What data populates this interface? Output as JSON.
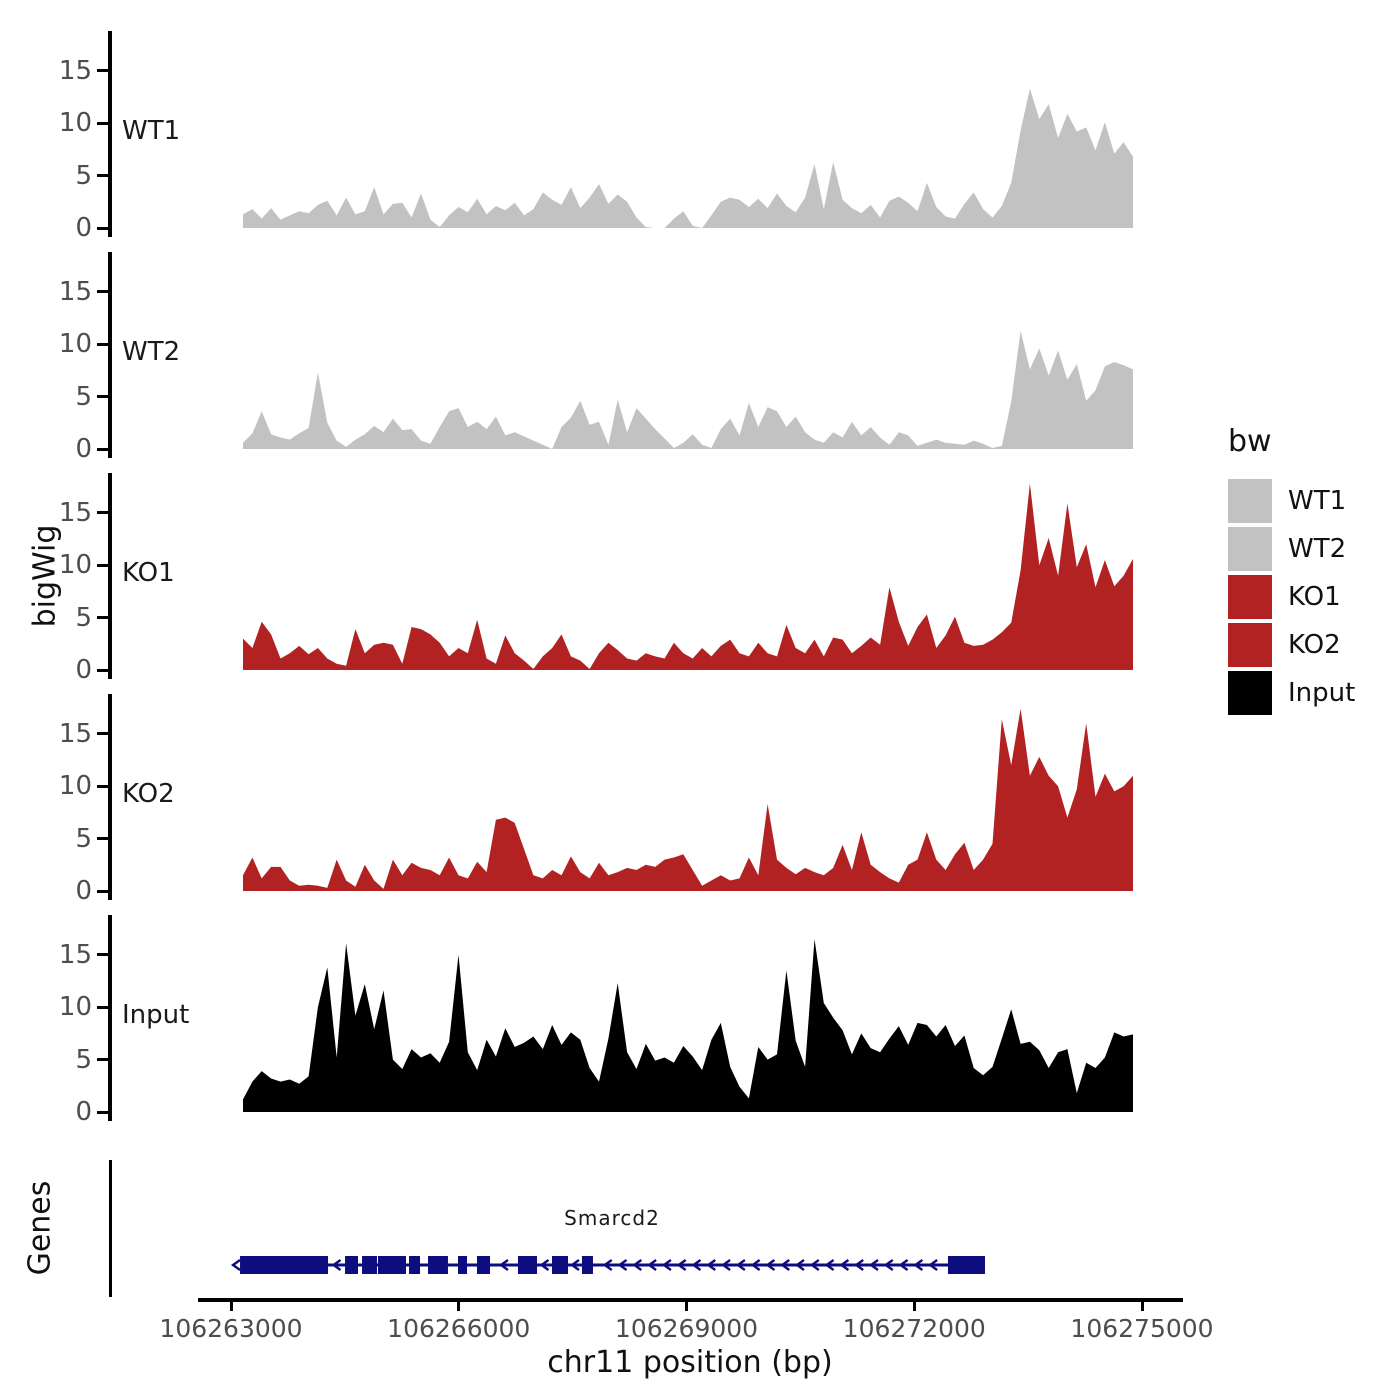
{
  "titles": {
    "y_axis": "bigWig",
    "genes_axis": "Genes"
  },
  "x_axis": {
    "title": "chr11 position (bp)",
    "ticks": [
      {
        "label": "106263000",
        "bp": 106263000
      },
      {
        "label": "106266000",
        "bp": 106266000
      },
      {
        "label": "106269000",
        "bp": 106269000
      },
      {
        "label": "106272000",
        "bp": 106272000
      },
      {
        "label": "106275000",
        "bp": 106275000
      }
    ]
  },
  "legend": {
    "title": "bw",
    "entries": [
      {
        "label": "WT1",
        "color": "#c2c2c2"
      },
      {
        "label": "WT2",
        "color": "#c2c2c2"
      },
      {
        "label": "KO1",
        "color": "#b22222"
      },
      {
        "label": "KO2",
        "color": "#b22222"
      },
      {
        "label": "Input",
        "color": "#000000"
      }
    ]
  },
  "tracks": [
    {
      "label": "WT1",
      "yticks": [
        0,
        5,
        10,
        15
      ]
    },
    {
      "label": "WT2",
      "yticks": [
        0,
        5,
        10,
        15
      ]
    },
    {
      "label": "KO1",
      "yticks": [
        0,
        5,
        10,
        15
      ]
    },
    {
      "label": "KO2",
      "yticks": [
        0,
        5,
        10,
        15
      ]
    },
    {
      "label": "Input",
      "yticks": [
        0,
        5,
        10,
        15
      ]
    }
  ],
  "chart_data": {
    "type": "area",
    "xlabel": "chr11 position (bp)",
    "ylabel": "bigWig",
    "x_axis_range_bp": [
      106262560,
      106275540
    ],
    "x_ticks_bp": [
      106263000,
      106266000,
      106269000,
      106272000,
      106275000
    ],
    "track_ylim": [
      0,
      18.8
    ],
    "track_yticks": [
      0,
      5,
      10,
      15
    ],
    "data_x_start_bp": 106263160,
    "data_x_end_bp": 106274880,
    "series": [
      {
        "name": "WT1",
        "color": "#c2c2c2",
        "values": [
          1.3,
          1.8,
          0.9,
          1.9,
          0.8,
          1.2,
          1.6,
          1.4,
          2.2,
          2.6,
          1.2,
          2.9,
          1.3,
          1.6,
          3.9,
          1.3,
          2.3,
          2.4,
          1.0,
          3.3,
          0.8,
          0.1,
          1.2,
          2.0,
          1.5,
          2.8,
          1.3,
          2.1,
          1.7,
          2.4,
          1.2,
          1.8,
          3.4,
          2.7,
          2.2,
          3.9,
          1.9,
          2.9,
          4.2,
          2.3,
          3.2,
          2.5,
          1.0,
          0.1,
          0.0,
          0.0,
          0.9,
          1.6,
          0.2,
          0.0,
          1.2,
          2.5,
          2.9,
          2.7,
          2.0,
          2.8,
          1.9,
          3.3,
          2.1,
          1.5,
          2.9,
          6.1,
          1.8,
          6.3,
          2.7,
          1.9,
          1.4,
          2.2,
          1.0,
          2.6,
          3.0,
          2.4,
          1.6,
          4.3,
          2.0,
          1.1,
          0.9,
          2.3,
          3.4,
          1.8,
          1.0,
          2.1,
          4.3,
          9.3,
          13.3,
          10.4,
          11.8,
          8.6,
          10.9,
          9.2,
          9.6,
          7.4,
          10.1,
          7.1,
          8.2,
          6.8
        ]
      },
      {
        "name": "WT2",
        "color": "#c2c2c2",
        "values": [
          0.6,
          1.5,
          3.6,
          1.4,
          1.1,
          0.9,
          1.5,
          2.0,
          7.3,
          2.5,
          0.8,
          0.2,
          0.9,
          1.4,
          2.2,
          1.6,
          2.9,
          1.8,
          1.9,
          0.8,
          0.5,
          2.1,
          3.6,
          3.9,
          2.1,
          2.6,
          1.9,
          3.1,
          1.3,
          1.6,
          1.2,
          0.8,
          0.4,
          0.0,
          2.1,
          3.0,
          4.6,
          2.3,
          2.6,
          0.4,
          4.7,
          1.6,
          3.9,
          2.9,
          1.9,
          1.0,
          0.1,
          0.6,
          1.4,
          0.4,
          0.1,
          1.9,
          2.9,
          1.3,
          4.4,
          2.1,
          4.0,
          3.6,
          2.1,
          3.1,
          1.6,
          0.9,
          0.6,
          1.6,
          1.1,
          2.6,
          1.3,
          2.1,
          1.1,
          0.4,
          1.6,
          1.3,
          0.3,
          0.6,
          0.9,
          0.6,
          0.5,
          0.4,
          0.8,
          0.5,
          0.1,
          0.3,
          4.5,
          11.3,
          7.6,
          9.6,
          7.0,
          9.4,
          6.6,
          8.1,
          4.6,
          5.6,
          7.9,
          8.3,
          8.0,
          7.6
        ]
      },
      {
        "name": "KO1",
        "color": "#b22222",
        "values": [
          3.0,
          2.1,
          4.6,
          3.4,
          1.1,
          1.6,
          2.3,
          1.5,
          2.1,
          1.1,
          0.6,
          0.4,
          3.9,
          1.6,
          2.4,
          2.6,
          2.4,
          0.6,
          4.1,
          3.9,
          3.4,
          2.6,
          1.3,
          2.1,
          1.6,
          4.8,
          1.1,
          0.6,
          3.3,
          1.6,
          0.9,
          0.1,
          1.3,
          2.1,
          3.4,
          1.3,
          0.9,
          0.1,
          1.6,
          2.6,
          1.9,
          1.1,
          0.9,
          1.6,
          1.3,
          1.1,
          2.6,
          1.6,
          1.1,
          2.1,
          1.3,
          2.3,
          2.9,
          1.6,
          1.3,
          2.6,
          1.6,
          1.3,
          4.3,
          2.1,
          1.6,
          2.9,
          1.3,
          3.1,
          2.9,
          1.6,
          2.3,
          3.1,
          2.4,
          7.9,
          4.6,
          2.3,
          4.1,
          5.3,
          2.1,
          3.3,
          5.1,
          2.6,
          2.3,
          2.4,
          2.9,
          3.6,
          4.5,
          9.5,
          17.8,
          10.0,
          12.6,
          9.0,
          15.9,
          9.8,
          12.0,
          7.9,
          10.5,
          8.0,
          9.0,
          10.6
        ]
      },
      {
        "name": "KO2",
        "color": "#b22222",
        "values": [
          1.5,
          3.2,
          1.2,
          2.3,
          2.3,
          1.0,
          0.5,
          0.6,
          0.5,
          0.3,
          3.0,
          1.0,
          0.4,
          2.5,
          1.0,
          0.2,
          3.0,
          1.5,
          2.7,
          2.2,
          2.0,
          1.5,
          3.2,
          1.5,
          1.2,
          2.8,
          1.8,
          6.8,
          7.0,
          6.5,
          4.0,
          1.5,
          1.2,
          2.0,
          1.5,
          3.3,
          1.8,
          1.2,
          2.7,
          1.5,
          1.8,
          2.2,
          2.0,
          2.5,
          2.3,
          3.0,
          3.2,
          3.5,
          2.0,
          0.5,
          1.0,
          1.5,
          1.0,
          1.2,
          3.2,
          1.5,
          8.3,
          3.0,
          2.2,
          1.6,
          2.2,
          1.8,
          1.5,
          2.2,
          4.4,
          2.0,
          5.6,
          2.5,
          1.8,
          1.2,
          0.8,
          2.5,
          3.0,
          5.6,
          3.0,
          2.0,
          3.5,
          4.6,
          2.0,
          3.0,
          4.5,
          16.4,
          12.0,
          17.4,
          11.0,
          12.8,
          11.0,
          10.0,
          7.0,
          9.7,
          16.0,
          9.0,
          11.2,
          9.5,
          10.0,
          11.0
        ]
      },
      {
        "name": "Input",
        "color": "#000000",
        "values": [
          1.2,
          2.9,
          3.9,
          3.2,
          2.9,
          3.1,
          2.7,
          3.4,
          10.0,
          13.8,
          5.2,
          16.1,
          9.2,
          12.2,
          7.9,
          11.6,
          5.0,
          4.1,
          6.0,
          5.2,
          5.6,
          4.7,
          6.7,
          15.0,
          5.7,
          4.0,
          6.9,
          5.3,
          8.0,
          6.2,
          6.6,
          7.2,
          6.0,
          8.3,
          6.4,
          7.6,
          6.9,
          4.2,
          2.9,
          7.0,
          12.3,
          5.7,
          4.1,
          6.5,
          4.9,
          5.2,
          4.7,
          6.3,
          5.3,
          4.0,
          6.9,
          8.5,
          4.3,
          2.4,
          1.3,
          6.2,
          5.0,
          5.5,
          13.5,
          6.8,
          4.3,
          16.5,
          10.4,
          9.0,
          7.8,
          5.5,
          7.5,
          6.1,
          5.7,
          7.0,
          8.2,
          6.4,
          8.5,
          8.3,
          7.2,
          8.3,
          6.3,
          7.3,
          4.2,
          3.5,
          4.3,
          7.0,
          9.8,
          6.5,
          6.7,
          5.9,
          4.2,
          5.7,
          6.0,
          1.8,
          4.7,
          4.2,
          5.2,
          7.6,
          7.2,
          7.4
        ]
      }
    ],
    "gene": {
      "name": "Smarcd2",
      "color": "#0d0d80",
      "strand": "-",
      "span_bp": [
        106263119,
        106272932
      ],
      "exons_bp": [
        [
          106263119,
          106264278
        ],
        [
          106264502,
          106264673
        ],
        [
          106264726,
          106264923
        ],
        [
          106264936,
          106265305
        ],
        [
          106265345,
          106265490
        ],
        [
          106265595,
          106265858
        ],
        [
          106265990,
          106266109
        ],
        [
          106266240,
          106266412
        ],
        [
          106266780,
          106267031
        ],
        [
          106267228,
          106267439
        ],
        [
          106267623,
          106267768
        ],
        [
          106272444,
          106272932
        ]
      ]
    }
  }
}
